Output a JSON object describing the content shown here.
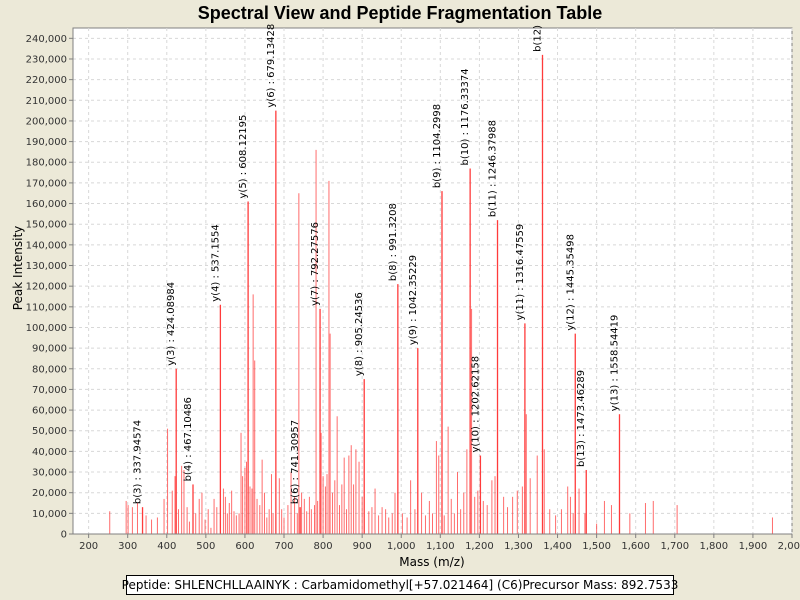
{
  "chart_data": {
    "type": "bar",
    "title": "Spectral View and Peptide Fragmentation Table",
    "xlabel": "Mass (m/z)",
    "ylabel": "Peak Intensity",
    "xlim": [
      160,
      2000
    ],
    "ylim": [
      0,
      245000
    ],
    "x_ticks": [
      200,
      300,
      400,
      500,
      600,
      700,
      800,
      900,
      1000,
      1100,
      1200,
      1300,
      1400,
      1500,
      1600,
      1700,
      1800,
      1900,
      2000
    ],
    "x_tick_labels": [
      "200",
      "300",
      "400",
      "500",
      "600",
      "700",
      "800",
      "900",
      "1,000",
      "1,100",
      "1,200",
      "1,300",
      "1,400",
      "1,500",
      "1,600",
      "1,700",
      "1,800",
      "1,900",
      "2,000"
    ],
    "y_ticks": [
      0,
      10000,
      20000,
      30000,
      40000,
      50000,
      60000,
      70000,
      80000,
      90000,
      100000,
      110000,
      120000,
      130000,
      140000,
      150000,
      160000,
      170000,
      180000,
      190000,
      200000,
      210000,
      220000,
      230000,
      240000
    ],
    "y_tick_labels": [
      "0",
      "10,000",
      "20,000",
      "30,000",
      "40,000",
      "50,000",
      "60,000",
      "70,000",
      "80,000",
      "90,000",
      "100,000",
      "110,000",
      "120,000",
      "130,000",
      "140,000",
      "150,000",
      "160,000",
      "170,000",
      "180,000",
      "190,000",
      "200,000",
      "210,000",
      "220,000",
      "230,000",
      "240,000"
    ],
    "grid": true,
    "bar_color": "#ff3b3b",
    "annotated_peaks": [
      {
        "label": "b(3) : 337.94574",
        "mz": 337.95,
        "intensity": 13000
      },
      {
        "label": "y(3) : 424.08984",
        "mz": 424.09,
        "intensity": 80000
      },
      {
        "label": "b(4) : 467.10486",
        "mz": 467.1,
        "intensity": 24000
      },
      {
        "label": "y(4) : 537.1554",
        "mz": 537.16,
        "intensity": 111000
      },
      {
        "label": "y(5) : 608.12195",
        "mz": 608.12,
        "intensity": 161000
      },
      {
        "label": "y(6) : 679.13428",
        "mz": 679.13,
        "intensity": 205000
      },
      {
        "label": "b(6) : 741.30957",
        "mz": 741.31,
        "intensity": 13000
      },
      {
        "label": "y(7) : 792.27576",
        "mz": 792.28,
        "intensity": 109000
      },
      {
        "label": "y(8) : 905.24536",
        "mz": 905.25,
        "intensity": 75000
      },
      {
        "label": "b(8) : 991.3208",
        "mz": 991.32,
        "intensity": 121000
      },
      {
        "label": "y(9) : 1042.35229",
        "mz": 1042.35,
        "intensity": 90000
      },
      {
        "label": "b(9) : 1104.2998",
        "mz": 1104.3,
        "intensity": 166000
      },
      {
        "label": "b(10) : 1176.33374",
        "mz": 1176.33,
        "intensity": 177000
      },
      {
        "label": "y(10) : 1202.62158",
        "mz": 1202.62,
        "intensity": 38000
      },
      {
        "label": "b(11) : 1246.37988",
        "mz": 1246.38,
        "intensity": 152000
      },
      {
        "label": "y(11) : 1316.47559",
        "mz": 1316.48,
        "intensity": 102000
      },
      {
        "label": "b(12)",
        "mz": 1361.5,
        "intensity": 232000
      },
      {
        "label": "y(12) : 1445.35498",
        "mz": 1445.35,
        "intensity": 97000
      },
      {
        "label": "b(13) : 1473.46289",
        "mz": 1473.46,
        "intensity": 31000
      },
      {
        "label": "y(13) : 1558.54419",
        "mz": 1558.54,
        "intensity": 58000
      }
    ],
    "peaks": [
      [
        254,
        11000
      ],
      [
        296,
        16000
      ],
      [
        301,
        14000
      ],
      [
        312,
        13000
      ],
      [
        325,
        15000
      ],
      [
        347,
        9000
      ],
      [
        361,
        7000
      ],
      [
        376,
        8000
      ],
      [
        393,
        17000
      ],
      [
        402,
        51000
      ],
      [
        414,
        21000
      ],
      [
        421,
        28000
      ],
      [
        430,
        12000
      ],
      [
        438,
        33000
      ],
      [
        444,
        31000
      ],
      [
        452,
        13000
      ],
      [
        458,
        6000
      ],
      [
        474,
        10000
      ],
      [
        483,
        17000
      ],
      [
        490,
        20000
      ],
      [
        498,
        7000
      ],
      [
        506,
        12000
      ],
      [
        513,
        3000
      ],
      [
        521,
        17000
      ],
      [
        528,
        13000
      ],
      [
        545,
        22000
      ],
      [
        550,
        18000
      ],
      [
        555,
        10000
      ],
      [
        560,
        15000
      ],
      [
        566,
        21000
      ],
      [
        572,
        11000
      ],
      [
        578,
        9000
      ],
      [
        585,
        10000
      ],
      [
        590,
        49000
      ],
      [
        594,
        28000
      ],
      [
        600,
        32000
      ],
      [
        604,
        35000
      ],
      [
        613,
        23000
      ],
      [
        618,
        22000
      ],
      [
        621,
        116000
      ],
      [
        625,
        84000
      ],
      [
        631,
        17000
      ],
      [
        638,
        14000
      ],
      [
        644,
        36000
      ],
      [
        650,
        20000
      ],
      [
        656,
        8000
      ],
      [
        662,
        12000
      ],
      [
        668,
        29000
      ],
      [
        672,
        10000
      ],
      [
        688,
        27000
      ],
      [
        694,
        12000
      ],
      [
        700,
        8000
      ],
      [
        710,
        14000
      ],
      [
        718,
        30000
      ],
      [
        727,
        18000
      ],
      [
        734,
        10000
      ],
      [
        738,
        165000
      ],
      [
        745,
        20000
      ],
      [
        752,
        17000
      ],
      [
        758,
        11000
      ],
      [
        765,
        18000
      ],
      [
        770,
        12000
      ],
      [
        778,
        14000
      ],
      [
        782,
        186000
      ],
      [
        786,
        16000
      ],
      [
        795,
        49000
      ],
      [
        800,
        28000
      ],
      [
        806,
        23000
      ],
      [
        810,
        29000
      ],
      [
        815,
        171000
      ],
      [
        818,
        97000
      ],
      [
        824,
        20000
      ],
      [
        830,
        26000
      ],
      [
        836,
        57000
      ],
      [
        842,
        14000
      ],
      [
        848,
        24000
      ],
      [
        854,
        37000
      ],
      [
        860,
        12000
      ],
      [
        866,
        38000
      ],
      [
        872,
        43000
      ],
      [
        878,
        24000
      ],
      [
        884,
        41000
      ],
      [
        892,
        35000
      ],
      [
        900,
        18000
      ],
      [
        917,
        11000
      ],
      [
        925,
        13000
      ],
      [
        933,
        22000
      ],
      [
        942,
        9000
      ],
      [
        951,
        13000
      ],
      [
        960,
        12000
      ],
      [
        968,
        8000
      ],
      [
        977,
        10000
      ],
      [
        984,
        20000
      ],
      [
        1003,
        10000
      ],
      [
        1015,
        8000
      ],
      [
        1024,
        26000
      ],
      [
        1035,
        12000
      ],
      [
        1052,
        20000
      ],
      [
        1062,
        9000
      ],
      [
        1072,
        16000
      ],
      [
        1080,
        10000
      ],
      [
        1090,
        45000
      ],
      [
        1096,
        38000
      ],
      [
        1110,
        9000
      ],
      [
        1120,
        52000
      ],
      [
        1128,
        17000
      ],
      [
        1136,
        10000
      ],
      [
        1144,
        30000
      ],
      [
        1152,
        12000
      ],
      [
        1160,
        20000
      ],
      [
        1168,
        41000
      ],
      [
        1180,
        109000
      ],
      [
        1188,
        18000
      ],
      [
        1196,
        21000
      ],
      [
        1210,
        16000
      ],
      [
        1220,
        14000
      ],
      [
        1232,
        26000
      ],
      [
        1240,
        28000
      ],
      [
        1262,
        18000
      ],
      [
        1272,
        13000
      ],
      [
        1285,
        18000
      ],
      [
        1297,
        21000
      ],
      [
        1310,
        23000
      ],
      [
        1320,
        58000
      ],
      [
        1330,
        27000
      ],
      [
        1348,
        38000
      ],
      [
        1366,
        41000
      ],
      [
        1380,
        12000
      ],
      [
        1395,
        9000
      ],
      [
        1410,
        12000
      ],
      [
        1426,
        23000
      ],
      [
        1433,
        18000
      ],
      [
        1440,
        10000
      ],
      [
        1455,
        22000
      ],
      [
        1470,
        10000
      ],
      [
        1500,
        5000
      ],
      [
        1520,
        16000
      ],
      [
        1538,
        14000
      ],
      [
        1585,
        10000
      ],
      [
        1625,
        15000
      ],
      [
        1645,
        16000
      ],
      [
        1706,
        14000
      ],
      [
        1950,
        8000
      ]
    ]
  },
  "info_box": {
    "peptide_label": "Peptide:",
    "peptide": "SHLENCHLLAAINYK",
    "separator": ":",
    "modification": "Carbamidomethyl[+57.021464] (C6)",
    "precursor_label": "Precursor Mass:",
    "precursor_mass": "892.7533"
  }
}
